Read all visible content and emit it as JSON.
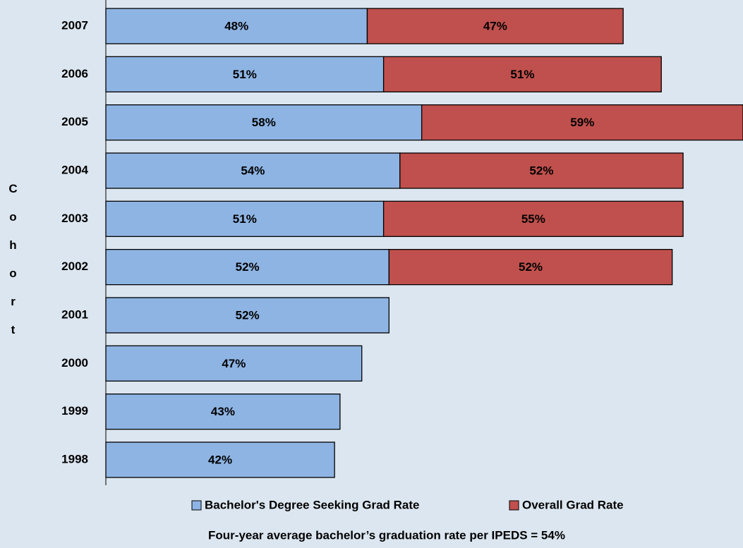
{
  "chart_data": {
    "type": "stacked-bar-horizontal",
    "y_label": "Cohort",
    "categories": [
      "2007",
      "2006",
      "2005",
      "2004",
      "2003",
      "2002",
      "2001",
      "2000",
      "1999",
      "1998"
    ],
    "series": [
      {
        "name": "Bachelor's Degree Seeking Grad Rate",
        "color": "#8eb4e3",
        "values": [
          48,
          51,
          58,
          54,
          51,
          52,
          52,
          47,
          43,
          42
        ],
        "value_labels": [
          "48%",
          "51%",
          "58%",
          "54%",
          "51%",
          "52%",
          "52%",
          "47%",
          "43%",
          "42%"
        ]
      },
      {
        "name": "Overall Grad Rate",
        "color": "#c0504d",
        "values": [
          47,
          51,
          59,
          52,
          55,
          52,
          null,
          null,
          null,
          null
        ],
        "value_labels": [
          "47%",
          "51%",
          "59%",
          "52%",
          "55%",
          "52%",
          null,
          null,
          null,
          null
        ]
      }
    ],
    "xlim": [
      0,
      117
    ],
    "footnote": "Four-year average bachelor’s graduation rate per IPEDS = 54%"
  }
}
